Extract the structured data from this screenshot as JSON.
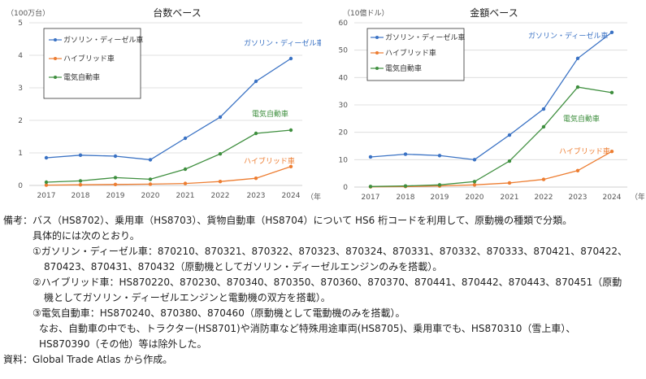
{
  "colors": {
    "gasoline": "#3a72c4",
    "hybrid": "#ed7d31",
    "ev": "#3f8f3f",
    "grid": "#d9d9d9",
    "axis": "#bfbfbf"
  },
  "chart_data": [
    {
      "type": "line",
      "title": "台数ベース",
      "unit_label": "（100万台）",
      "x_unit": "（年）",
      "categories": [
        "2017",
        "2018",
        "2019",
        "2020",
        "2021",
        "2022",
        "2023",
        "2024"
      ],
      "ylim": [
        0,
        5
      ],
      "yticks": [
        0,
        1,
        2,
        3,
        4,
        5
      ],
      "grid": true,
      "legend": "top-left",
      "series": [
        {
          "name": "ガソリン・ディーゼル車",
          "key": "gasoline",
          "values": [
            0.85,
            0.93,
            0.9,
            0.79,
            1.45,
            2.1,
            3.2,
            3.9
          ]
        },
        {
          "name": "ハイブリッド車",
          "key": "hybrid",
          "values": [
            0.01,
            0.02,
            0.03,
            0.04,
            0.06,
            0.12,
            0.22,
            0.58
          ]
        },
        {
          "name": "電気自動車",
          "key": "ev",
          "values": [
            0.1,
            0.14,
            0.24,
            0.19,
            0.5,
            0.97,
            1.6,
            1.7
          ]
        }
      ],
      "annotations": [
        "ガソリン・ディーゼル車",
        "電気自動車",
        "ハイブリッド車"
      ]
    },
    {
      "type": "line",
      "title": "金額ベース",
      "unit_label": "（10億ドル）",
      "x_unit": "（年）",
      "categories": [
        "2017",
        "2018",
        "2019",
        "2020",
        "2021",
        "2022",
        "2023",
        "2024"
      ],
      "ylim": [
        0,
        60
      ],
      "yticks": [
        0,
        10,
        20,
        30,
        40,
        50,
        60
      ],
      "grid": true,
      "legend": "top-left",
      "series": [
        {
          "name": "ガソリン・ディーゼル車",
          "key": "gasoline",
          "values": [
            11,
            12,
            11.5,
            10,
            19,
            28.5,
            47,
            56.5
          ]
        },
        {
          "name": "ハイブリッド車",
          "key": "hybrid",
          "values": [
            0.1,
            0.2,
            0.4,
            0.8,
            1.5,
            2.8,
            6,
            13
          ]
        },
        {
          "name": "電気自動車",
          "key": "ev",
          "values": [
            0.2,
            0.4,
            0.8,
            2,
            9.5,
            22,
            36.5,
            34.5
          ]
        }
      ],
      "annotations": [
        "ガソリン・ディーゼル車",
        "電気自動車",
        "ハイブリッド車"
      ]
    }
  ],
  "notes": {
    "line1": "備考：バス（HS8702）、乗用車（HS8703）、貨物自動車（HS8704）について HS6 桁コードを利用して、原動機の種類で分類。",
    "line2": "具体的には次のとおり。",
    "line3": "①ガソリン・ディーゼル車：870210、870321、870322、870323、870324、870331、870332、870333、870421、870422、",
    "line4": "870423、870431、870432（原動機としてガソリン・ディーゼルエンジンのみを搭載）。",
    "line5": "②ハイブリッド車：HS870220、870230、870340、870350、870360、870370、870441、870442、870443、870451（原動",
    "line6": "機としてガソリン・ディーゼルエンジンと電動機の双方を搭載）。",
    "line7": "③電気自動車：HS870240、870380、870460（原動機として電動機のみを搭載）。",
    "line8": "なお、自動車の中でも、トラクター(HS8701)や消防車など特殊用途車両(HS8705)、乗用車でも、HS870310（雪上車）、",
    "line9": "HS870390（その他）等は除外した。",
    "line10": "資料：Global Trade Atlas から作成。"
  }
}
